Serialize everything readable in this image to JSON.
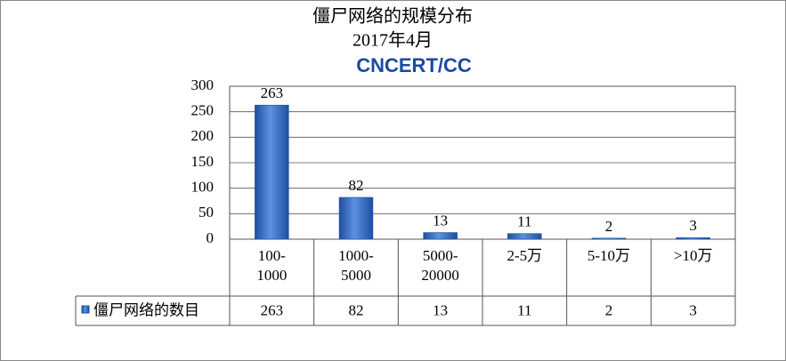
{
  "chart_data": {
    "type": "bar",
    "title": "僵尸网络的规模分布",
    "subtitle": "2017年4月",
    "logo": "CNCERT/CC",
    "categories": [
      "100-1000",
      "1000-5000",
      "5000-20000",
      "2-5万",
      "5-10万",
      ">10万"
    ],
    "series": [
      {
        "name": "僵尸网络的数目",
        "color": "#3a70c8",
        "values": [
          263,
          82,
          13,
          11,
          2,
          3
        ]
      }
    ],
    "ylim": [
      0,
      300
    ],
    "yticks": [
      0,
      50,
      100,
      150,
      200,
      250,
      300
    ],
    "grid": true
  }
}
